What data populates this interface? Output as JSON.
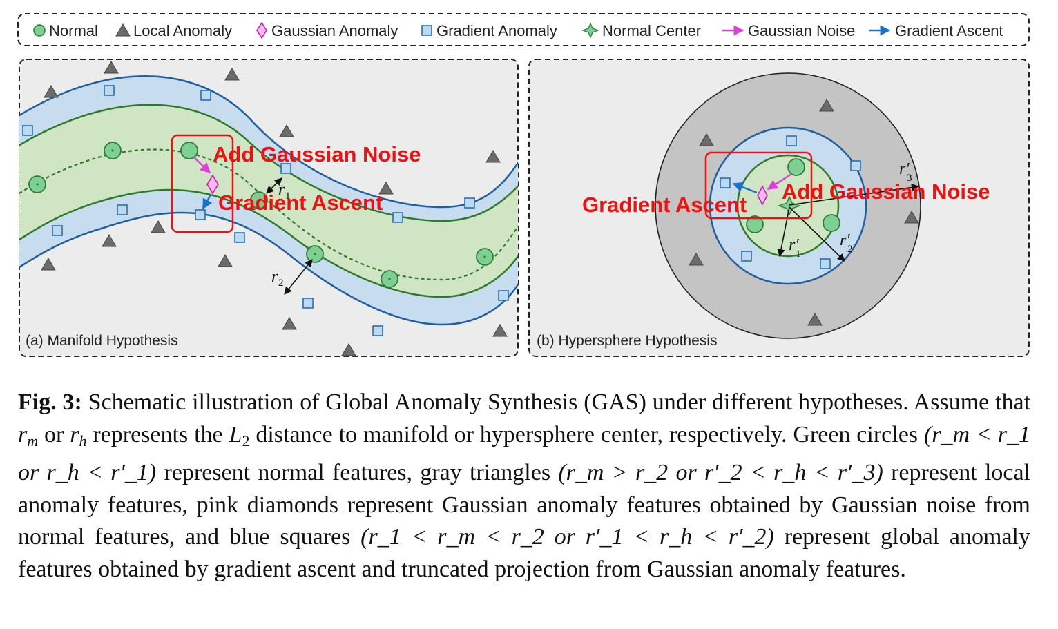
{
  "legend": [
    {
      "symbol": "normal",
      "label": "Normal"
    },
    {
      "symbol": "local",
      "label": "Local Anomaly"
    },
    {
      "symbol": "gaussian",
      "label": "Gaussian Anomaly"
    },
    {
      "symbol": "gradient",
      "label": "Gradient Anomaly"
    },
    {
      "symbol": "center",
      "label": "Normal Center"
    },
    {
      "symbol": "noise-arrow",
      "label": "Gaussian Noise"
    },
    {
      "symbol": "ascent-arrow",
      "label": "Gradient Ascent"
    }
  ],
  "colors": {
    "normal_fill": "#7dcf94",
    "normal_stroke": "#2e7d32",
    "triangle": "#6b6b6b",
    "square_fill": "#bcd9f0",
    "square_stroke": "#2a6fb0",
    "diamond_fill": "#f7b8f0",
    "diamond_stroke": "#c01eb0",
    "noise_arrow": "#e040d8",
    "ascent_arrow": "#1b73c8",
    "band_green": "#cfe5c4",
    "band_blue": "#c8dcef",
    "panel_bg": "#ececec",
    "outer_sphere": "#c4c4c4",
    "annotation_red": "#ee1111"
  },
  "panel_a": {
    "label": "(a) Manifold Hypothesis",
    "annotation_noise": "Add Gaussian Noise",
    "annotation_ascent": "Gradient Ascent",
    "radius_labels": [
      "r",
      "r"
    ],
    "radius_subs": [
      "1",
      "2"
    ]
  },
  "panel_b": {
    "label": "(b) Hypersphere Hypothesis",
    "annotation_noise": "Add Gaussian Noise",
    "annotation_ascent": "Gradient Ascent",
    "radius_labels": [
      "r′",
      "r′",
      "r′"
    ],
    "radius_subs": [
      "1",
      "2",
      "3"
    ]
  },
  "caption": {
    "fig_label": "Fig. 3:",
    "text1": "Schematic illustration of Global Anomaly Synthesis (GAS) under different hypotheses. Assume that",
    "var_m": "r",
    "sub_m": "m",
    "text_or": "or",
    "var_h": "r",
    "sub_h": "h",
    "text2": "represents the",
    "l2": "L",
    "l2_sub": "2",
    "text3": "distance to manifold or hypersphere center, respectively. Green circles",
    "cond1": "(r_m < r_1 or r_h < r′_1)",
    "text4": "represent normal features, gray triangles",
    "cond2": "(r_m > r_2 or r′_2 < r_h < r′_3)",
    "text5": "represent local anomaly features, pink diamonds represent Gaussian anomaly features obtained by Gaussian noise from normal features, and blue squares",
    "cond3": "(r_1 < r_m < r_2 or r′_1 < r_h < r′_2)",
    "text6": "represent global anomaly features obtained by gradient ascent and truncated projection from Gaussian anomaly features."
  }
}
